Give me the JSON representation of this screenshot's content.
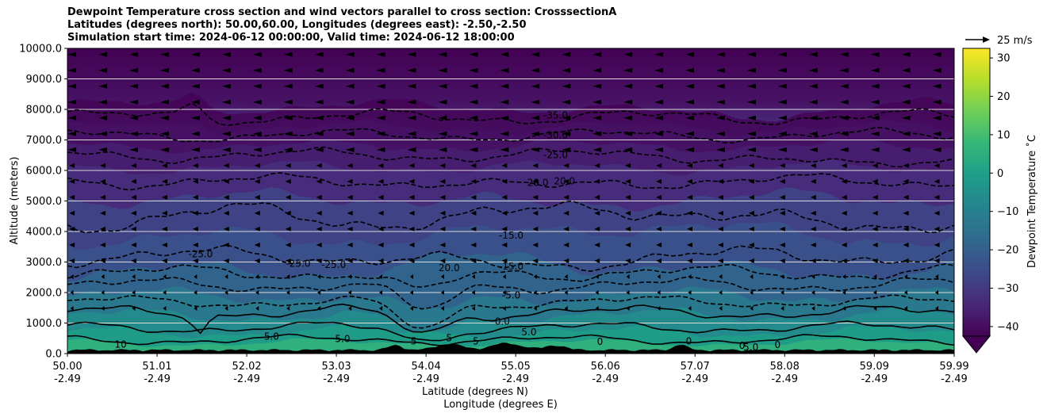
{
  "chart_data": {
    "type": "heatmap",
    "title_lines": [
      "Dewpoint Temperature cross section and wind vectors parallel to cross section: CrosssectionA",
      "Latitudes (degrees north): 50.00,60.00, Longitudes (degrees east): -2.50,-2.50",
      "Simulation start time: 2024-06-12 00:00:00, Valid time: 2024-06-12 18:00:00"
    ],
    "ylabel": "Altitude (meters)",
    "xlabel_lat": "Latitude (degrees N)",
    "xlabel_lon": "Longitude (degrees E)",
    "ylim": [
      0,
      10000
    ],
    "xlim": [
      50.0,
      59.99
    ],
    "yticks": [
      {
        "value": 0,
        "label": "0.0"
      },
      {
        "value": 1000,
        "label": "1000.0"
      },
      {
        "value": 2000,
        "label": "2000.0"
      },
      {
        "value": 3000,
        "label": "3000.0"
      },
      {
        "value": 4000,
        "label": "4000.0"
      },
      {
        "value": 5000,
        "label": "5000.0"
      },
      {
        "value": 6000,
        "label": "6000.0"
      },
      {
        "value": 7000,
        "label": "7000.0"
      },
      {
        "value": 8000,
        "label": "8000.0"
      },
      {
        "value": 9000,
        "label": "9000.0"
      },
      {
        "value": 10000,
        "label": "10000.0"
      }
    ],
    "xticks": [
      {
        "value": 50.0,
        "lat": "50.00",
        "lon": "-2.49"
      },
      {
        "value": 51.01,
        "lat": "51.01",
        "lon": "-2.49"
      },
      {
        "value": 52.02,
        "lat": "52.02",
        "lon": "-2.49"
      },
      {
        "value": 53.03,
        "lat": "53.03",
        "lon": "-2.49"
      },
      {
        "value": 54.04,
        "lat": "54.04",
        "lon": "-2.49"
      },
      {
        "value": 55.05,
        "lat": "55.05",
        "lon": "-2.49"
      },
      {
        "value": 56.06,
        "lat": "56.06",
        "lon": "-2.49"
      },
      {
        "value": 57.07,
        "lat": "57.07",
        "lon": "-2.49"
      },
      {
        "value": 58.08,
        "lat": "58.08",
        "lon": "-2.49"
      },
      {
        "value": 59.09,
        "lat": "59.09",
        "lon": "-2.49"
      },
      {
        "value": 59.99,
        "lat": "59.99",
        "lon": "-2.49"
      }
    ],
    "grid": "horizontal",
    "colorbar": {
      "label": "Dewpoint Temperature ˚C",
      "range": [
        -42.5,
        32.5
      ],
      "extend": "min",
      "ticks": [
        -40,
        -30,
        -20,
        -10,
        0,
        10,
        20,
        30
      ],
      "tick_labels": [
        "−40",
        "−30",
        "−20",
        "−10",
        "0",
        "10",
        "20",
        "30"
      ],
      "colormap": "viridis"
    },
    "wind_key": {
      "label": "25 m/s",
      "speed": 25
    },
    "contour_labels": [
      {
        "text": "-35.0",
        "lat": 55.5,
        "alt": 7700
      },
      {
        "text": "-30.0",
        "lat": 55.5,
        "alt": 7050
      },
      {
        "text": "-25.0",
        "lat": 55.5,
        "alt": 6400
      },
      {
        "text": "20.0",
        "lat": 55.3,
        "alt": 5500
      },
      {
        "text": "20.0",
        "lat": 55.6,
        "alt": 5550
      },
      {
        "text": "-15.0",
        "lat": 55.0,
        "alt": 3770
      },
      {
        "text": "-15.0",
        "lat": 55.0,
        "alt": 2750
      },
      {
        "text": "-5.0",
        "lat": 55.0,
        "alt": 1800
      },
      {
        "text": "0.0",
        "lat": 54.9,
        "alt": 950
      },
      {
        "text": "5.0",
        "lat": 55.2,
        "alt": 600
      },
      {
        "text": "-25.0",
        "lat": 51.5,
        "alt": 3150
      },
      {
        "text": "-25.0",
        "lat": 52.6,
        "alt": 2850
      },
      {
        "text": "-25.0",
        "lat": 53.0,
        "alt": 2800
      },
      {
        "text": "20.0",
        "lat": 54.3,
        "alt": 2700
      },
      {
        "text": "10",
        "lat": 50.6,
        "alt": 200
      },
      {
        "text": "5.0",
        "lat": 52.3,
        "alt": 450
      },
      {
        "text": "5.0",
        "lat": 53.1,
        "alt": 380
      },
      {
        "text": "5",
        "lat": 53.9,
        "alt": 300
      },
      {
        "text": "5",
        "lat": 54.3,
        "alt": 400
      },
      {
        "text": "5",
        "lat": 54.6,
        "alt": 300
      },
      {
        "text": "0",
        "lat": 56.0,
        "alt": 280
      },
      {
        "text": "0",
        "lat": 57.0,
        "alt": 300
      },
      {
        "text": "0",
        "lat": 57.6,
        "alt": 150
      },
      {
        "text": "5.0",
        "lat": 57.7,
        "alt": 100
      },
      {
        "text": "0",
        "lat": 58.0,
        "alt": 180
      }
    ]
  },
  "colors": {
    "background": "#ffffff",
    "contour_line": "#000000",
    "terrain": "#000000",
    "gridline": "#d9d9d9"
  }
}
